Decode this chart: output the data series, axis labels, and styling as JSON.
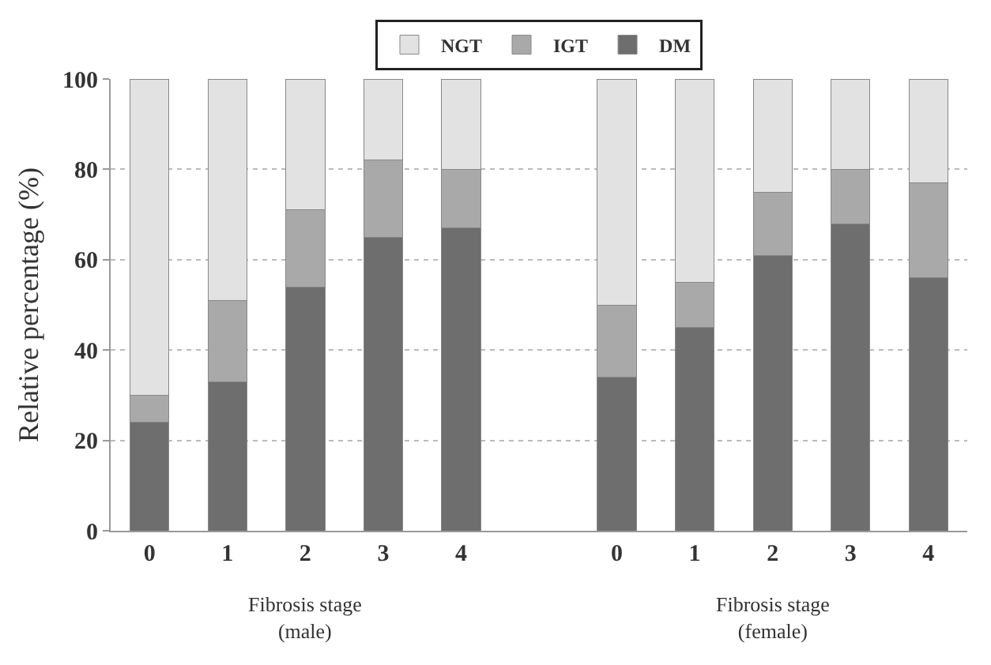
{
  "chart_data": {
    "type": "bar",
    "stacked": true,
    "ylabel": "Relative percentage (%)",
    "categories": [
      "0",
      "1",
      "2",
      "3",
      "4",
      null,
      "0",
      "1",
      "2",
      "3",
      "4"
    ],
    "series": [
      {
        "name": "DM",
        "color": "#6e6e6e",
        "values": [
          24,
          33,
          54,
          65,
          67,
          null,
          34,
          45,
          61,
          68,
          56
        ]
      },
      {
        "name": "IGT",
        "color": "#a9a9a9",
        "values": [
          6,
          18,
          17,
          17,
          13,
          null,
          16,
          10,
          14,
          12,
          21
        ]
      },
      {
        "name": "NGT",
        "color": "#e2e2e2",
        "values": [
          70,
          49,
          29,
          18,
          20,
          null,
          50,
          45,
          25,
          20,
          23
        ]
      }
    ],
    "ylim": [
      0,
      100
    ],
    "yticks": [
      0,
      20,
      40,
      60,
      80,
      100
    ],
    "grid": "y",
    "legend": "top",
    "annotations": [
      "Fibrosis stage\n(male)",
      "Fibrosis stage\n(female)"
    ]
  }
}
